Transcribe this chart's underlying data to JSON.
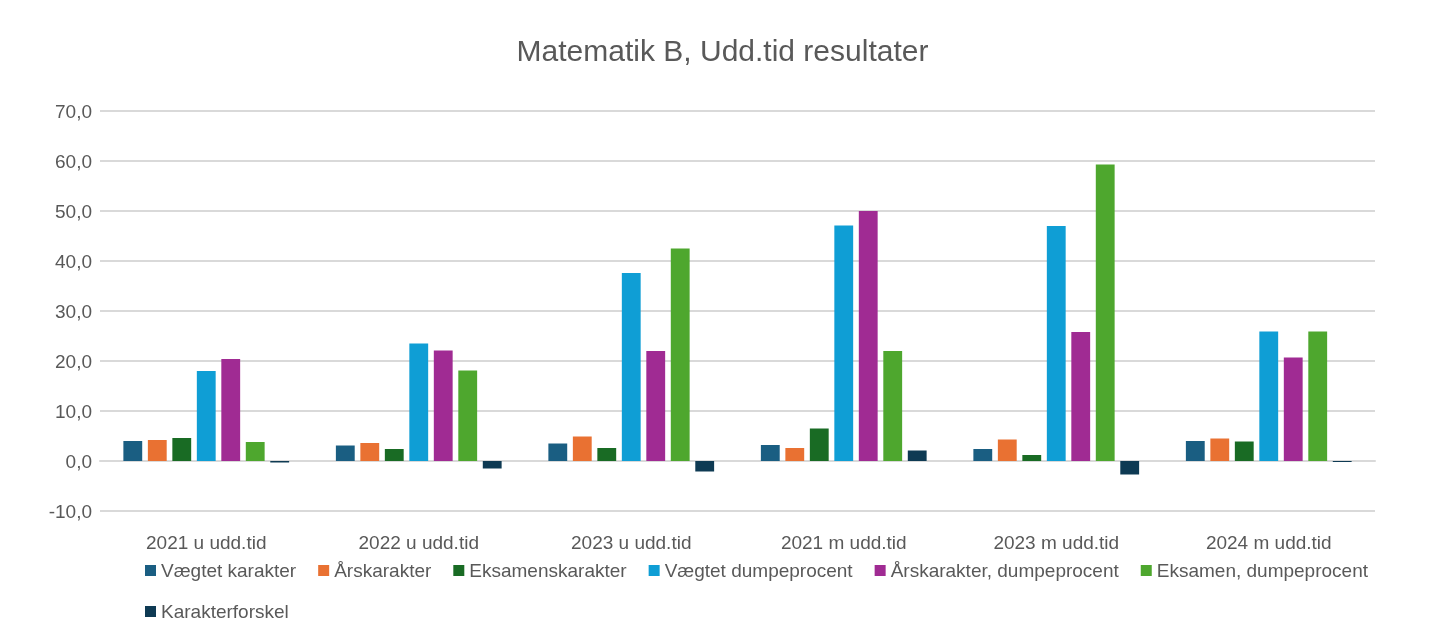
{
  "chart_data": {
    "type": "bar",
    "title": "Matematik B, Udd.tid resultater",
    "categories": [
      "2021 u udd.tid",
      "2022 u udd.tid",
      "2023 u udd.tid",
      "2021 m udd.tid",
      "2023 m udd.tid",
      "2024 m udd.tid"
    ],
    "series": [
      {
        "name": "Vægtet karakter",
        "color": "#1a5e82",
        "values": [
          4.0,
          3.1,
          3.5,
          3.2,
          2.4,
          4.0
        ]
      },
      {
        "name": "Årskarakter",
        "color": "#e97132",
        "values": [
          4.2,
          3.6,
          4.9,
          2.6,
          4.3,
          4.5
        ]
      },
      {
        "name": "Eksamenskarakter",
        "color": "#196b24",
        "values": [
          4.6,
          2.4,
          2.6,
          6.5,
          1.2,
          3.9
        ]
      },
      {
        "name": "Vægtet dumpeprocent",
        "color": "#0f9ed5",
        "values": [
          18.0,
          23.5,
          37.6,
          47.1,
          47.0,
          25.9
        ]
      },
      {
        "name": "Årskarakter, dumpeprocent",
        "color": "#a02b93",
        "values": [
          20.4,
          22.1,
          22.0,
          50.0,
          25.8,
          20.7
        ]
      },
      {
        "name": "Eksamen, dumpeprocent",
        "color": "#4ea72e",
        "values": [
          3.8,
          18.1,
          42.5,
          22.0,
          59.3,
          25.9
        ]
      },
      {
        "name": "Karakterforskel",
        "color": "#0e3a53",
        "values": [
          -0.3,
          -1.5,
          -2.1,
          2.1,
          -2.7,
          -0.2
        ]
      }
    ],
    "ylim": [
      -10,
      70
    ],
    "yticks": [
      {
        "value": -10,
        "label": "-10,0"
      },
      {
        "value": 0,
        "label": "0,0"
      },
      {
        "value": 10,
        "label": "10,0"
      },
      {
        "value": 20,
        "label": "20,0"
      },
      {
        "value": 30,
        "label": "30,0"
      },
      {
        "value": 40,
        "label": "40,0"
      },
      {
        "value": 50,
        "label": "50,0"
      },
      {
        "value": 60,
        "label": "60,0"
      },
      {
        "value": 70,
        "label": "70,0"
      }
    ],
    "grid": "y",
    "legend": "bottom"
  }
}
